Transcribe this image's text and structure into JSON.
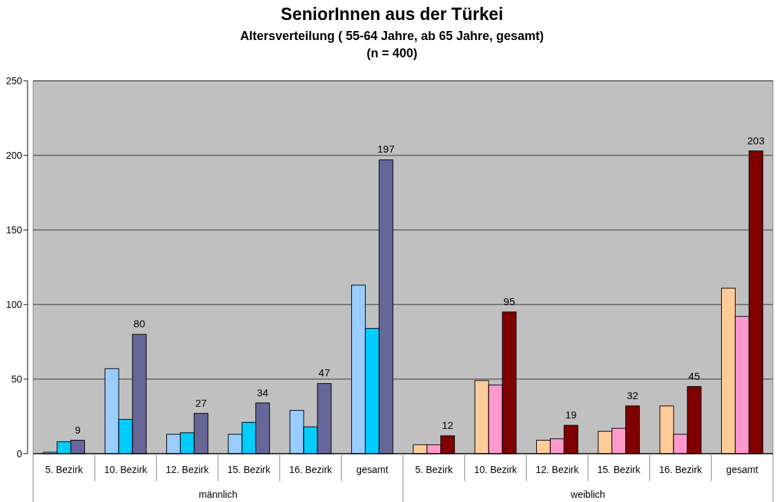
{
  "chart_data": {
    "type": "bar",
    "title": "SeniorInnen aus der Türkei",
    "subtitle": "Altersverteilung ( 55-64 Jahre, ab 65 Jahre, gesamt)\n(n = 400)",
    "categories": [
      "5. Bezirk",
      "10. Bezirk",
      "12. Bezirk",
      "15. Bezirk",
      "16. Bezirk",
      "gesamt",
      "5. Bezirk",
      "10. Bezirk",
      "12. Bezirk",
      "15. Bezirk",
      "16. Bezirk",
      "gesamt"
    ],
    "series": [
      {
        "colors": [
          "#99ccff",
          "#99ccff",
          "#99ccff",
          "#99ccff",
          "#99ccff",
          "#99ccff",
          "#ffcc99",
          "#ffcc99",
          "#ffcc99",
          "#ffcc99",
          "#ffcc99",
          "#ffcc99"
        ],
        "values": [
          1,
          57,
          13,
          13,
          29,
          113,
          6,
          49,
          9,
          15,
          32,
          111
        ]
      },
      {
        "colors": [
          "#00ccff",
          "#00ccff",
          "#00ccff",
          "#00ccff",
          "#00ccff",
          "#00ccff",
          "#ff99cc",
          "#ff99cc",
          "#ff99cc",
          "#ff99cc",
          "#ff99cc",
          "#ff99cc"
        ],
        "values": [
          8,
          23,
          14,
          21,
          18,
          84,
          6,
          46,
          10,
          17,
          13,
          92
        ]
      },
      {
        "colors": [
          "#666699",
          "#666699",
          "#666699",
          "#666699",
          "#666699",
          "#666699",
          "#800000",
          "#800000",
          "#800000",
          "#800000",
          "#800000",
          "#800000"
        ],
        "values": [
          9,
          80,
          27,
          34,
          47,
          197,
          12,
          95,
          19,
          32,
          45,
          203
        ],
        "value_labels": [
          "9",
          "80",
          "27",
          "34",
          "47",
          "197",
          "12",
          "95",
          "19",
          "32",
          "45",
          "203"
        ]
      }
    ],
    "ylim": [
      0,
      250
    ],
    "yticks": [
      0,
      50,
      100,
      150,
      200,
      250
    ],
    "grid": "y",
    "annotations": [
      "männlich",
      "weiblich"
    ]
  }
}
